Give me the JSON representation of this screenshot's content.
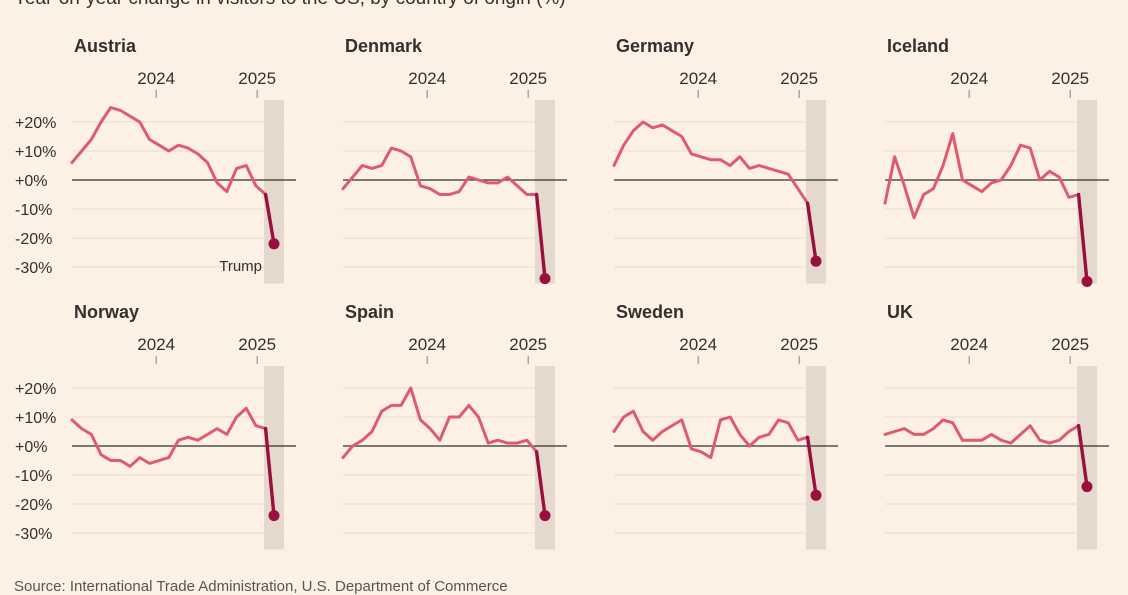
{
  "subtitle": "Year-on-year change in visitors to the US, by country of origin (%)",
  "source": "Source: International Trade Administration, U.S. Department of Commerce",
  "colors": {
    "background": "#fdf1e6",
    "line": "#e05a6d",
    "highlight": "#990f3d",
    "shade": "#e5d9ce",
    "zero_line": "#33302e",
    "grid": "#e6dcd3",
    "tick_text": "#33302e"
  },
  "chart_data": {
    "type": "line",
    "title": "Year-on-year change in visitors to the US, by country of origin (%)",
    "xlabel": "",
    "ylabel": "%",
    "ylim": [
      -35,
      28
    ],
    "yticks": [
      20,
      10,
      0,
      -10,
      -20,
      -30
    ],
    "ytick_labels": [
      "+20%",
      "+10%",
      "+0%",
      "-10%",
      "-20%",
      "-30%"
    ],
    "x_year_ticks": [
      {
        "label": "2024",
        "month_index": 12
      },
      {
        "label": "2025",
        "month_index": 24
      }
    ],
    "shaded_month_index": 26,
    "annotation": {
      "panel": "Austria",
      "text": "Trump"
    },
    "series": [
      {
        "name": "Austria",
        "values": [
          6,
          10,
          14,
          20,
          25,
          24,
          22,
          20,
          14,
          12,
          10,
          12,
          11,
          9,
          6,
          -1,
          -4,
          4,
          5,
          -2,
          -5,
          -22
        ]
      },
      {
        "name": "Denmark",
        "values": [
          -3,
          1,
          5,
          4,
          5,
          11,
          10,
          8,
          -2,
          -3,
          -5,
          -5,
          -4,
          1,
          0,
          -1,
          -1,
          1,
          -2,
          -5,
          -5,
          -34
        ]
      },
      {
        "name": "Germany",
        "values": [
          5,
          12,
          17,
          20,
          18,
          19,
          17,
          15,
          9,
          8,
          7,
          7,
          5,
          8,
          4,
          5,
          4,
          3,
          2,
          -3,
          -8,
          -28
        ]
      },
      {
        "name": "Iceland",
        "values": [
          -8,
          8,
          -2,
          -13,
          -5,
          -3,
          5,
          16,
          0,
          -2,
          -4,
          -1,
          0,
          5,
          12,
          11,
          0,
          3,
          1,
          -6,
          -5,
          -35
        ]
      },
      {
        "name": "Norway",
        "values": [
          9,
          6,
          4,
          -3,
          -5,
          -5,
          -7,
          -4,
          -6,
          -5,
          -4,
          2,
          3,
          2,
          4,
          6,
          4,
          10,
          13,
          7,
          6,
          -24
        ]
      },
      {
        "name": "Spain",
        "values": [
          -4,
          0,
          2,
          5,
          12,
          14,
          14,
          20,
          9,
          6,
          2,
          10,
          10,
          14,
          10,
          1,
          2,
          1,
          1,
          2,
          -2,
          -24
        ]
      },
      {
        "name": "Sweden",
        "values": [
          5,
          10,
          12,
          5,
          2,
          5,
          7,
          9,
          -1,
          -2,
          -4,
          9,
          10,
          4,
          0,
          3,
          4,
          9,
          8,
          2,
          3,
          -17
        ]
      },
      {
        "name": "UK",
        "values": [
          4,
          5,
          6,
          4,
          4,
          6,
          9,
          8,
          2,
          2,
          2,
          4,
          2,
          1,
          4,
          7,
          2,
          1,
          2,
          5,
          7,
          -14
        ]
      }
    ]
  }
}
